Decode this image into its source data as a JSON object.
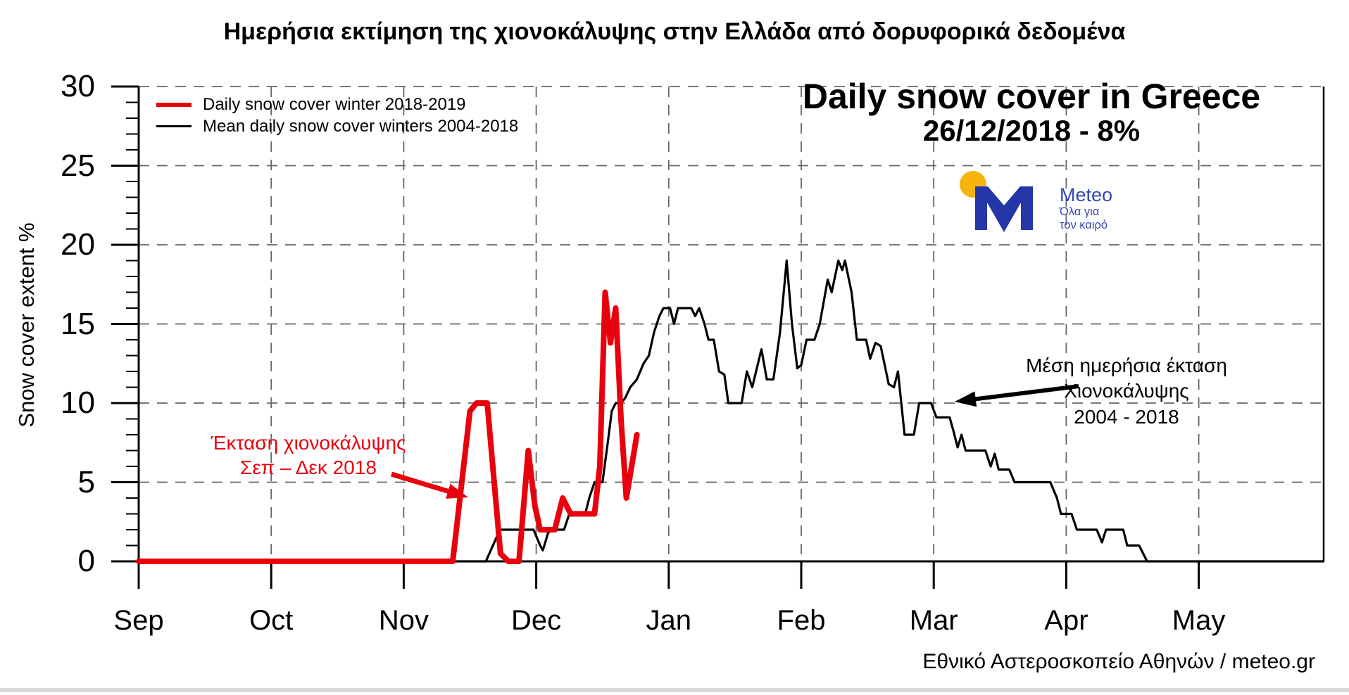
{
  "header": {
    "title": "Ημερήσια εκτίμηση της χιονοκάλυψης στην Ελλάδα από δορυφορικά δεδομένα"
  },
  "chart_data": {
    "type": "line",
    "title": "Ημερήσια εκτίμηση της χιονοκάλυψης στην Ελλάδα από δορυφορικά δεδομένα",
    "overlay_title": "Daily snow cover in Greece",
    "overlay_subtitle": "26/12/2018 - 8%",
    "ylabel": "Snow cover extent %",
    "ylim": [
      0,
      30
    ],
    "yticks": [
      0,
      5,
      10,
      15,
      20,
      25,
      30
    ],
    "y_minor_tick_step": 1,
    "xtick_labels": [
      "Sep",
      "Oct",
      "Nov",
      "Dec",
      "Jan",
      "Feb",
      "Mar",
      "Apr",
      "May"
    ],
    "x_unit": "months since Sep 1",
    "grid": {
      "style": "dashed",
      "vertical": "month starts",
      "horizontal_step": 5
    },
    "legend": {
      "position": "top-left",
      "items": [
        {
          "label": "Daily snow cover winter 2018-2019",
          "color": "#e8000d"
        },
        {
          "label": "Mean daily snow cover winters 2004-2018",
          "color": "#000000"
        }
      ]
    },
    "series": [
      {
        "name": "Mean daily snow cover winters 2004-2018",
        "color": "#000000",
        "width": 3.2,
        "points": [
          [
            0,
            0
          ],
          [
            2.62,
            0
          ],
          [
            2.7,
            1.5
          ],
          [
            2.73,
            2
          ],
          [
            2.98,
            2
          ],
          [
            3.03,
            1
          ],
          [
            3.05,
            0.7
          ],
          [
            3.09,
            1.8
          ],
          [
            3.12,
            2
          ],
          [
            3.21,
            2
          ],
          [
            3.25,
            3
          ],
          [
            3.37,
            3
          ],
          [
            3.4,
            4
          ],
          [
            3.44,
            5
          ],
          [
            3.5,
            5
          ],
          [
            3.54,
            7.5
          ],
          [
            3.57,
            9.5
          ],
          [
            3.6,
            10
          ],
          [
            3.64,
            10
          ],
          [
            3.67,
            10.3
          ],
          [
            3.71,
            11
          ],
          [
            3.76,
            11.5
          ],
          [
            3.81,
            12.5
          ],
          [
            3.85,
            13
          ],
          [
            3.89,
            14.5
          ],
          [
            3.93,
            15.5
          ],
          [
            3.96,
            16
          ],
          [
            4.01,
            16
          ],
          [
            4.04,
            15
          ],
          [
            4.07,
            16
          ],
          [
            4.17,
            16
          ],
          [
            4.2,
            15.5
          ],
          [
            4.23,
            16
          ],
          [
            4.27,
            15
          ],
          [
            4.3,
            14
          ],
          [
            4.34,
            14
          ],
          [
            4.38,
            12
          ],
          [
            4.42,
            11.8
          ],
          [
            4.45,
            10
          ],
          [
            4.55,
            10
          ],
          [
            4.59,
            12
          ],
          [
            4.63,
            11
          ],
          [
            4.7,
            13.4
          ],
          [
            4.74,
            11.5
          ],
          [
            4.79,
            11.5
          ],
          [
            4.84,
            14.5
          ],
          [
            4.89,
            19
          ],
          [
            4.93,
            15
          ],
          [
            4.97,
            12.2
          ],
          [
            5.0,
            12.4
          ],
          [
            5.04,
            14
          ],
          [
            5.1,
            14
          ],
          [
            5.14,
            15
          ],
          [
            5.2,
            17.8
          ],
          [
            5.23,
            17
          ],
          [
            5.28,
            19
          ],
          [
            5.31,
            18.4
          ],
          [
            5.33,
            19
          ],
          [
            5.38,
            17
          ],
          [
            5.42,
            14
          ],
          [
            5.49,
            14
          ],
          [
            5.52,
            12.8
          ],
          [
            5.56,
            13.8
          ],
          [
            5.6,
            13.6
          ],
          [
            5.66,
            11.2
          ],
          [
            5.7,
            11
          ],
          [
            5.73,
            12
          ],
          [
            5.78,
            8
          ],
          [
            5.85,
            8
          ],
          [
            5.89,
            10
          ],
          [
            5.98,
            10
          ],
          [
            6.02,
            9.1
          ],
          [
            6.12,
            9.1
          ],
          [
            6.15,
            8.2
          ],
          [
            6.18,
            7.2
          ],
          [
            6.21,
            8
          ],
          [
            6.24,
            7
          ],
          [
            6.39,
            7
          ],
          [
            6.43,
            6
          ],
          [
            6.46,
            6.8
          ],
          [
            6.49,
            5.8
          ],
          [
            6.57,
            5.8
          ],
          [
            6.61,
            5
          ],
          [
            6.88,
            5
          ],
          [
            6.93,
            4
          ],
          [
            6.96,
            3
          ],
          [
            7.04,
            3
          ],
          [
            7.08,
            2
          ],
          [
            7.23,
            2
          ],
          [
            7.27,
            1.2
          ],
          [
            7.3,
            2
          ],
          [
            7.43,
            2
          ],
          [
            7.46,
            1
          ],
          [
            7.55,
            1
          ],
          [
            7.61,
            0
          ],
          [
            8.94,
            0
          ]
        ]
      },
      {
        "name": "Daily snow cover winter 2018-2019",
        "color": "#e8000d",
        "width": 8,
        "points": [
          [
            0,
            0
          ],
          [
            2.37,
            0
          ],
          [
            2.5,
            9.5
          ],
          [
            2.55,
            10
          ],
          [
            2.63,
            10
          ],
          [
            2.73,
            0.5
          ],
          [
            2.79,
            0
          ],
          [
            2.87,
            0
          ],
          [
            2.94,
            7
          ],
          [
            2.99,
            3.5
          ],
          [
            3.03,
            2
          ],
          [
            3.14,
            2
          ],
          [
            3.2,
            4
          ],
          [
            3.26,
            3
          ],
          [
            3.44,
            3
          ],
          [
            3.48,
            6
          ],
          [
            3.52,
            17
          ],
          [
            3.56,
            13.8
          ],
          [
            3.6,
            16
          ],
          [
            3.64,
            9
          ],
          [
            3.68,
            4
          ],
          [
            3.72,
            6
          ],
          [
            3.76,
            8
          ]
        ]
      }
    ],
    "annotations": [
      {
        "id": "red",
        "lines": [
          "Έκταση χιονοκάλυψης",
          "Σεπ – Δεκ 2018"
        ],
        "color": "#e8000d",
        "arrow": {
          "from": [
            556,
            674
          ],
          "to": [
            665,
            707
          ]
        }
      },
      {
        "id": "black",
        "lines": [
          "Μέση ημερήσια έκταση",
          "Χιονοκάλυψης",
          "2004 - 2018"
        ],
        "color": "#000000",
        "arrow": {
          "from": [
            1532,
            549
          ],
          "to": [
            1356,
            571
          ]
        }
      }
    ]
  },
  "logo": {
    "brand": "Meteo",
    "tagline": [
      "Όλα για",
      "τον καιρό"
    ],
    "colors": {
      "m_blue": "#2536a8",
      "text_blue": "#3448b4",
      "dot_yellow": "#f7b50c"
    }
  },
  "footer": {
    "credit": "Εθνικό Αστεροσκοπείο Αθηνών / meteo.gr",
    "bar_color": "#d9d9d9"
  }
}
